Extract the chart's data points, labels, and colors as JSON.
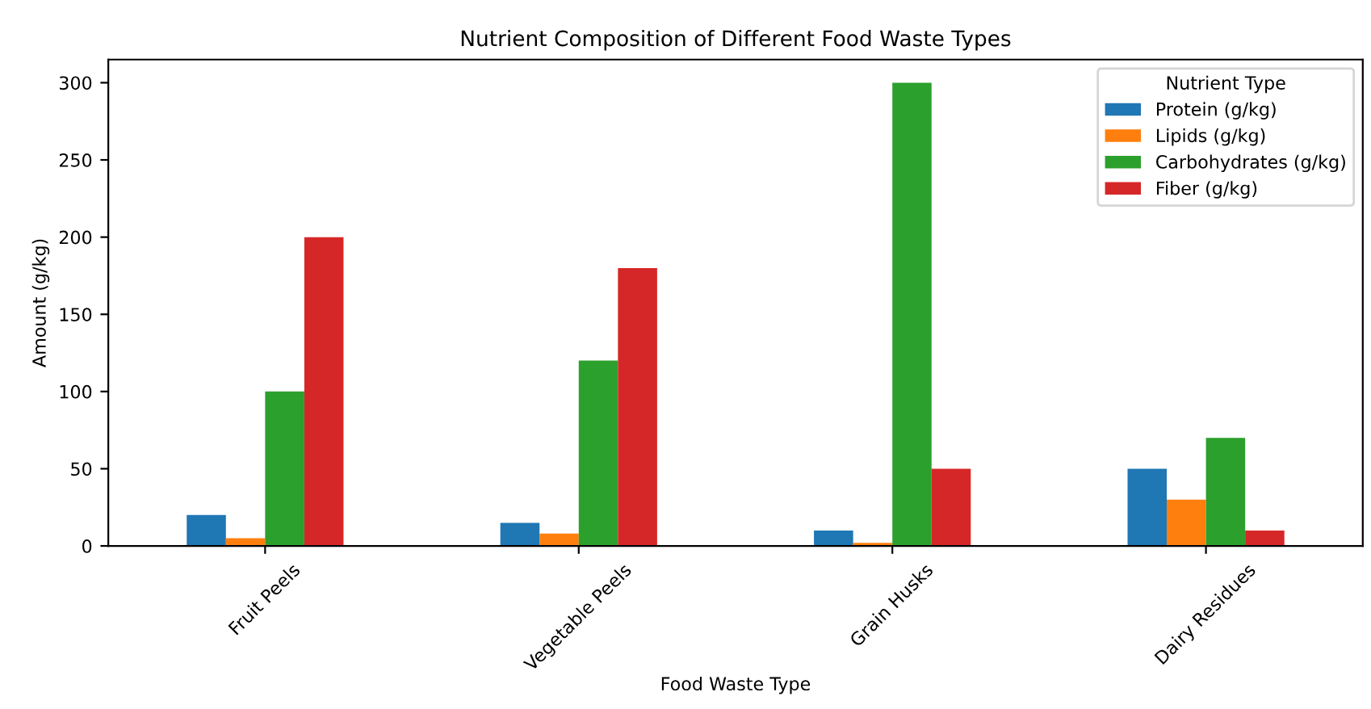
{
  "chart_data": {
    "type": "bar",
    "title": "Nutrient Composition of Different Food Waste Types",
    "xlabel": "Food Waste Type",
    "ylabel": "Amount (g/kg)",
    "legend_title": "Nutrient Type",
    "categories": [
      "Fruit Peels",
      "Vegetable Peels",
      "Grain Husks",
      "Dairy Residues"
    ],
    "series": [
      {
        "name": "Protein (g/kg)",
        "color": "#1f77b4",
        "values": [
          20,
          15,
          10,
          50
        ]
      },
      {
        "name": "Lipids (g/kg)",
        "color": "#ff7f0e",
        "values": [
          5,
          8,
          2,
          30
        ]
      },
      {
        "name": "Carbohydrates (g/kg)",
        "color": "#2ca02c",
        "values": [
          100,
          120,
          300,
          70
        ]
      },
      {
        "name": "Fiber (g/kg)",
        "color": "#d62728",
        "values": [
          200,
          180,
          50,
          10
        ]
      }
    ],
    "ylim": [
      0,
      315
    ],
    "yticks": [
      0,
      50,
      100,
      150,
      200,
      250,
      300
    ],
    "legend": "top right",
    "grid": false
  }
}
